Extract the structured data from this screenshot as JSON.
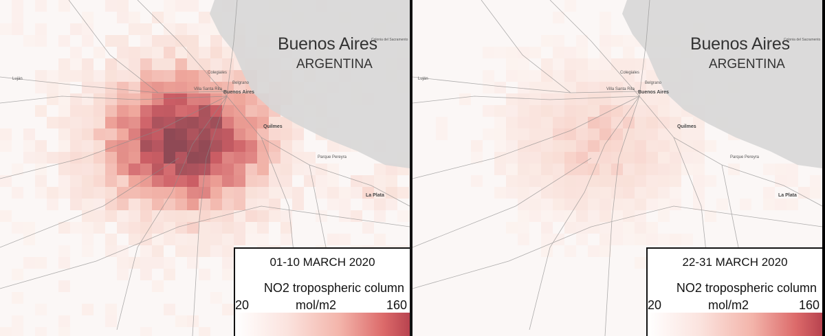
{
  "panels": [
    {
      "city": "Buenos Aires",
      "country": "ARGENTINA",
      "period": "01-10 MARCH 2020",
      "variable": "NO2 tropospheric column",
      "unit": "mol/m2",
      "min": "20",
      "max": "160",
      "labels": {
        "quilmes": "Quilmes",
        "la_plata": "La Plata",
        "caba": "Buenos Aires",
        "lujan": "Luján",
        "olivos": "Colegiales",
        "victoria": "Belgrano",
        "villa": "Villa Santa Rita",
        "parque": "Parque Pereyra",
        "colonia": "Colonia del Sacramento"
      }
    },
    {
      "city": "Buenos Aires",
      "country": "ARGENTINA",
      "period": "22-31 MARCH 2020",
      "variable": "NO2 tropospheric column",
      "unit": "mol/m2",
      "min": "20",
      "max": "160",
      "labels": {
        "quilmes": "Quilmes",
        "la_plata": "La Plata",
        "caba": "Buenos Aires",
        "lujan": "Luján",
        "olivos": "Colegiales",
        "victoria": "Belgrano",
        "villa": "Villa Santa Rita",
        "parque": "Parque Pereyra",
        "colonia": "Colonia del Sacramento"
      }
    }
  ],
  "colors": {
    "land": "#fbf7f6",
    "water": "#d9d9d9",
    "road": "#8a8a8a",
    "low": "#fbe3de",
    "mid": "#ec9e92",
    "high": "#c14b55",
    "peak": "#8c3e48"
  }
}
